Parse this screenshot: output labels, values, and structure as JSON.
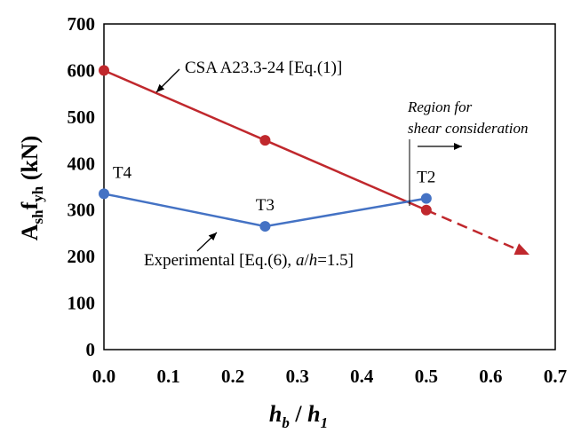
{
  "chart_data": {
    "type": "line",
    "xlabel": {
      "main": "h",
      "sub1": "b",
      "sep": " / ",
      "main2": "h",
      "sub2": "1"
    },
    "ylabel": {
      "main": "A",
      "sub1": "sh",
      "mid": "f",
      "sub2": "yh",
      "unit": " (kN)"
    },
    "xlim": [
      0,
      0.7
    ],
    "ylim": [
      0,
      700
    ],
    "xticks": [
      0.0,
      0.1,
      0.2,
      0.3,
      0.4,
      0.5,
      0.6,
      0.7
    ],
    "xtick_labels": [
      "0.0",
      "0.1",
      "0.2",
      "0.3",
      "0.4",
      "0.5",
      "0.6",
      "0.7"
    ],
    "yticks": [
      0,
      100,
      200,
      300,
      400,
      500,
      600,
      700
    ],
    "ytick_labels": [
      "0",
      "100",
      "200",
      "300",
      "400",
      "500",
      "600",
      "700"
    ],
    "series": [
      {
        "name": "CSA A23.3-24 [Eq.(1)]",
        "color": "#c0282d",
        "x": [
          0.0,
          0.25,
          0.5
        ],
        "y": [
          600,
          450,
          300
        ],
        "extension": {
          "x": [
            0.5,
            0.66
          ],
          "y": [
            300,
            204
          ]
        }
      },
      {
        "name": "Experimental [Eq.(6), a/h=1.5]",
        "color": "#4472c4",
        "x": [
          0.0,
          0.25,
          0.5
        ],
        "y": [
          335,
          265,
          325
        ],
        "point_labels": [
          "T4",
          "T3",
          "T2"
        ]
      }
    ],
    "annotations": {
      "csa_label": "CSA A23.3-24 [Eq.(1)]",
      "exp_label_prefix": "Experimental [Eq.(6), ",
      "exp_label_a": "a",
      "exp_label_slash": "/",
      "exp_label_h": "h",
      "exp_label_suffix": "=1.5]",
      "region_line1": "Region for",
      "region_line2": "shear consideration"
    }
  }
}
